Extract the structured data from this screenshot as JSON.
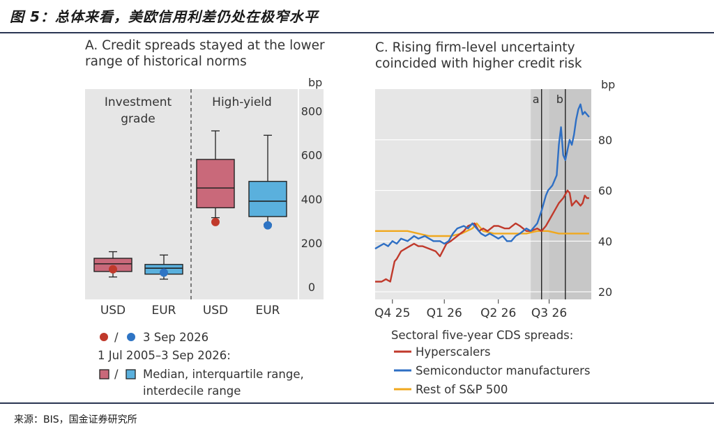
{
  "page": {
    "title": "图 5：总体来看，美欧信用利差仍处在极窄水平",
    "source": "来源：BIS，国金证券研究所"
  },
  "chart_data": [
    {
      "type": "box",
      "title": "A. Credit spreads stayed at the lower range of historical norms",
      "title_line1": "A. Credit spreads stayed at the lower",
      "title_line2": "range of historical norms",
      "unit": "bp",
      "ylim": [
        0,
        900
      ],
      "yticks": [
        0,
        200,
        400,
        600,
        800
      ],
      "groups": [
        {
          "label_line1": "Investment",
          "label_line2": "grade"
        },
        {
          "label": "High-yield"
        }
      ],
      "categories": [
        "USD",
        "EUR",
        "USD",
        "EUR"
      ],
      "boxes": [
        {
          "category": "USD",
          "group": "Investment grade",
          "p10": 45,
          "q1": 70,
          "median": 105,
          "q3": 130,
          "p90": 160,
          "current": 80
        },
        {
          "category": "EUR",
          "group": "Investment grade",
          "p10": 35,
          "q1": 58,
          "median": 85,
          "q3": 102,
          "p90": 145,
          "current": 65
        },
        {
          "category": "USD",
          "group": "High-yield",
          "p10": 315,
          "q1": 360,
          "median": 450,
          "q3": 580,
          "p90": 710,
          "current": 295
        },
        {
          "category": "EUR",
          "group": "High-yield",
          "p10": 285,
          "q1": 320,
          "median": 390,
          "q3": 480,
          "p90": 690,
          "current": 280
        }
      ],
      "colors": {
        "usd": "#c9697a",
        "eur": "#5ab0dd",
        "usd_dot": "#c0392b",
        "eur_dot": "#2e74c4"
      },
      "legend": {
        "dot_sep": "/",
        "dot_label": "3 Sep 2026",
        "box_title": "1 Jul 2005–3 Sep 2026:",
        "box_sep": "/",
        "box_label_line1": "Median, interquartile range,",
        "box_label_line2": "interdecile range"
      }
    },
    {
      "type": "line",
      "title": "C. Rising firm-level uncertainty coincided with higher credit risk",
      "title_line1": "C. Rising firm-level uncertainty",
      "title_line2": "coincided with higher credit risk",
      "unit": "bp",
      "ylim": [
        17,
        100
      ],
      "yticks": [
        20,
        40,
        60,
        80
      ],
      "xlim": [
        0,
        100
      ],
      "x_ticks": [
        {
          "x": 8,
          "label": "Q4 25"
        },
        {
          "x": 32,
          "label": "Q1 26"
        },
        {
          "x": 57,
          "label": "Q2 26"
        },
        {
          "x": 80.5,
          "label": "Q3 26"
        }
      ],
      "shaded_regions": [
        [
          72,
          80.5
        ],
        [
          80.5,
          100
        ]
      ],
      "event_lines": [
        {
          "x": 77,
          "label": "a"
        },
        {
          "x": 88,
          "label": "b"
        }
      ],
      "legend_title": "Sectoral five-year CDS spreads:",
      "series": [
        {
          "name": "Hyperscalers",
          "color": "#c0392b",
          "x": [
            0,
            3,
            5,
            7,
            9,
            10,
            12,
            14,
            16,
            18,
            20,
            22,
            25,
            28,
            30,
            33,
            35,
            38,
            41,
            43,
            46,
            48,
            50,
            52,
            55,
            57,
            60,
            62,
            65,
            67,
            70,
            72,
            75,
            77,
            79,
            81,
            83,
            85,
            87,
            89,
            90,
            91,
            92,
            93,
            94,
            95,
            96,
            97,
            98,
            99
          ],
          "values": [
            24,
            24,
            25,
            24,
            32,
            33,
            36,
            37,
            38,
            39,
            38,
            38,
            37,
            36,
            34,
            39,
            40,
            42,
            44,
            46,
            47,
            44,
            45,
            44,
            46,
            46,
            45,
            45,
            47,
            46,
            44,
            44,
            45,
            44,
            46,
            49,
            52,
            55,
            57,
            60,
            59,
            54,
            55,
            56,
            55,
            54,
            55,
            58,
            57,
            57
          ]
        },
        {
          "name": "Semiconductor manufacturers",
          "color": "#2e6fc4",
          "x": [
            0,
            2,
            4,
            6,
            8,
            10,
            12,
            15,
            18,
            20,
            23,
            25,
            27,
            30,
            32,
            34,
            36,
            38,
            41,
            43,
            45,
            47,
            49,
            51,
            53,
            55,
            57,
            59,
            61,
            63,
            65,
            67,
            70,
            72,
            75,
            77,
            79,
            80,
            82,
            84,
            85,
            86,
            87,
            88,
            89,
            90,
            91,
            92,
            93,
            94,
            95,
            96,
            97,
            98,
            99
          ],
          "values": [
            37,
            38,
            39,
            38,
            40,
            39,
            41,
            40,
            42,
            41,
            42,
            41,
            40,
            40,
            39,
            40,
            43,
            45,
            46,
            45,
            47,
            45,
            43,
            42,
            43,
            42,
            41,
            42,
            40,
            40,
            42,
            43,
            45,
            44,
            47,
            52,
            58,
            60,
            62,
            66,
            78,
            85,
            74,
            72,
            76,
            80,
            78,
            82,
            88,
            92,
            94,
            90,
            91,
            90,
            89
          ]
        },
        {
          "name": "Rest of S&P 500",
          "color": "#f0a81e",
          "x": [
            0,
            5,
            10,
            15,
            20,
            25,
            30,
            35,
            40,
            45,
            47,
            50,
            55,
            60,
            65,
            70,
            75,
            80,
            85,
            90,
            95,
            99
          ],
          "values": [
            44,
            44,
            44,
            44,
            43,
            42,
            42,
            42,
            43,
            45,
            47,
            44,
            43,
            43,
            43,
            43,
            44,
            44,
            43,
            43,
            43,
            43
          ]
        }
      ]
    }
  ]
}
